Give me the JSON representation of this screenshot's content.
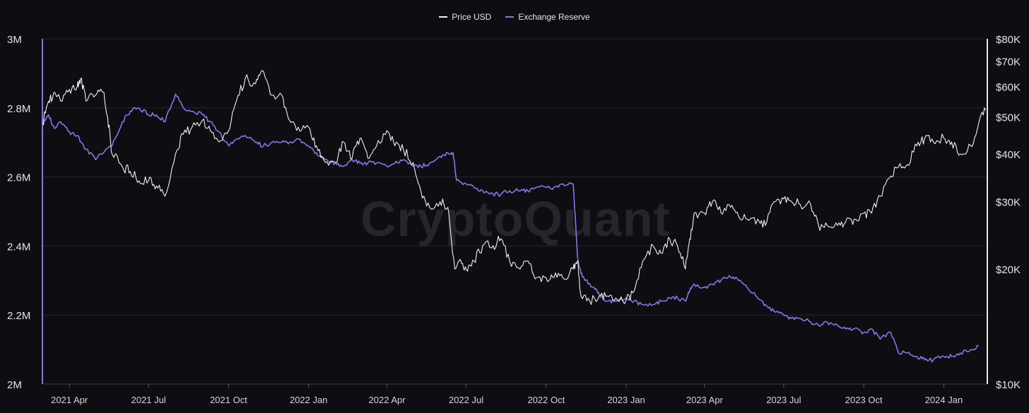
{
  "colors": {
    "background": "#0e0d11",
    "grid": "#25242b",
    "price": "#f2f2f2",
    "reserve": "#7b7bea"
  },
  "watermark": "CryptoQuant",
  "chart_data": {
    "type": "line",
    "title": "",
    "xlabel": "",
    "ylabel": "",
    "legend": [
      "Price USD",
      "Exchange Reserve"
    ],
    "legend_position": "top-center",
    "grid": true,
    "x_range": [
      "2021-03-01",
      "2024-02-20"
    ],
    "x_ticks": [
      "2021 Apr",
      "2021 Jul",
      "2021 Oct",
      "2022 Jan",
      "2022 Apr",
      "2022 Jul",
      "2022 Oct",
      "2023 Jan",
      "2023 Apr",
      "2023 Jul",
      "2023 Oct",
      "2024 Jan"
    ],
    "x_tick_dates": [
      "2021-04-01",
      "2021-07-01",
      "2021-10-01",
      "2022-01-01",
      "2022-04-01",
      "2022-07-01",
      "2022-10-01",
      "2023-01-01",
      "2023-04-01",
      "2023-07-01",
      "2023-10-01",
      "2024-01-01"
    ],
    "y_left": {
      "range": [
        2000000,
        3000000
      ],
      "ticks": [
        3000000,
        2800000,
        2600000,
        2400000,
        2200000,
        2000000
      ],
      "tick_labels": [
        "3M",
        "2.8M",
        "2.6M",
        "2.4M",
        "2.2M",
        "2M"
      ]
    },
    "y_right": {
      "scale": "log",
      "range": [
        10000,
        80000
      ],
      "ticks": [
        80000,
        70000,
        60000,
        50000,
        40000,
        30000,
        20000,
        10000
      ],
      "tick_labels": [
        "$80K",
        "$70K",
        "$60K",
        "$50K",
        "$40K",
        "$30K",
        "$20K",
        "$10K"
      ]
    },
    "series": [
      {
        "name": "Exchange Reserve",
        "axis": "left",
        "color": "#7b7bea",
        "x": [
          "2021-03-01",
          "2021-03-08",
          "2021-03-15",
          "2021-03-22",
          "2021-04-01",
          "2021-04-10",
          "2021-04-20",
          "2021-05-01",
          "2021-05-10",
          "2021-05-20",
          "2021-06-01",
          "2021-06-10",
          "2021-06-20",
          "2021-07-01",
          "2021-07-10",
          "2021-07-20",
          "2021-08-01",
          "2021-08-10",
          "2021-08-20",
          "2021-09-01",
          "2021-09-10",
          "2021-09-20",
          "2021-10-01",
          "2021-10-10",
          "2021-10-20",
          "2021-11-01",
          "2021-11-10",
          "2021-11-20",
          "2021-12-01",
          "2021-12-10",
          "2021-12-20",
          "2022-01-01",
          "2022-01-10",
          "2022-01-20",
          "2022-02-01",
          "2022-02-10",
          "2022-02-20",
          "2022-03-01",
          "2022-03-10",
          "2022-03-20",
          "2022-04-01",
          "2022-04-10",
          "2022-04-20",
          "2022-05-01",
          "2022-05-10",
          "2022-05-20",
          "2022-06-01",
          "2022-06-10",
          "2022-06-16",
          "2022-06-20",
          "2022-07-01",
          "2022-07-10",
          "2022-07-20",
          "2022-08-01",
          "2022-08-10",
          "2022-08-20",
          "2022-09-01",
          "2022-09-10",
          "2022-09-20",
          "2022-10-01",
          "2022-10-10",
          "2022-10-20",
          "2022-11-01",
          "2022-11-06",
          "2022-11-10",
          "2022-11-15",
          "2022-11-25",
          "2022-12-01",
          "2022-12-10",
          "2022-12-20",
          "2023-01-01",
          "2023-01-10",
          "2023-01-20",
          "2023-02-01",
          "2023-02-10",
          "2023-02-20",
          "2023-03-01",
          "2023-03-10",
          "2023-03-15",
          "2023-03-20",
          "2023-04-01",
          "2023-04-10",
          "2023-04-20",
          "2023-05-01",
          "2023-05-10",
          "2023-05-20",
          "2023-06-01",
          "2023-06-10",
          "2023-06-20",
          "2023-07-01",
          "2023-07-10",
          "2023-07-20",
          "2023-08-01",
          "2023-08-10",
          "2023-08-20",
          "2023-09-01",
          "2023-09-10",
          "2023-09-20",
          "2023-10-01",
          "2023-10-10",
          "2023-10-20",
          "2023-11-01",
          "2023-11-10",
          "2023-11-20",
          "2023-12-01",
          "2023-12-10",
          "2023-12-20",
          "2024-01-01",
          "2024-01-10",
          "2024-01-20",
          "2024-02-01",
          "2024-02-10"
        ],
        "values": [
          2750000,
          2780000,
          2740000,
          2760000,
          2730000,
          2720000,
          2680000,
          2650000,
          2670000,
          2690000,
          2760000,
          2790000,
          2800000,
          2780000,
          2780000,
          2760000,
          2840000,
          2800000,
          2790000,
          2780000,
          2760000,
          2730000,
          2690000,
          2710000,
          2720000,
          2700000,
          2690000,
          2700000,
          2700000,
          2700000,
          2710000,
          2690000,
          2670000,
          2650000,
          2640000,
          2630000,
          2650000,
          2640000,
          2640000,
          2640000,
          2630000,
          2640000,
          2650000,
          2630000,
          2630000,
          2640000,
          2660000,
          2670000,
          2670000,
          2590000,
          2580000,
          2570000,
          2560000,
          2550000,
          2550000,
          2560000,
          2560000,
          2560000,
          2570000,
          2570000,
          2570000,
          2580000,
          2580000,
          2370000,
          2320000,
          2300000,
          2280000,
          2260000,
          2240000,
          2240000,
          2250000,
          2240000,
          2230000,
          2230000,
          2240000,
          2250000,
          2250000,
          2240000,
          2270000,
          2290000,
          2280000,
          2290000,
          2300000,
          2310000,
          2300000,
          2280000,
          2250000,
          2230000,
          2210000,
          2200000,
          2190000,
          2190000,
          2180000,
          2170000,
          2180000,
          2170000,
          2160000,
          2160000,
          2150000,
          2160000,
          2130000,
          2150000,
          2090000,
          2090000,
          2080000,
          2070000,
          2070000,
          2080000,
          2080000,
          2090000,
          2100000,
          2110000
        ]
      },
      {
        "name": "Price USD",
        "axis": "right",
        "color": "#f2f2f2",
        "x": [
          "2021-03-01",
          "2021-03-08",
          "2021-03-15",
          "2021-03-22",
          "2021-04-01",
          "2021-04-10",
          "2021-04-14",
          "2021-04-20",
          "2021-05-01",
          "2021-05-10",
          "2021-05-15",
          "2021-05-20",
          "2021-06-01",
          "2021-06-10",
          "2021-06-20",
          "2021-07-01",
          "2021-07-10",
          "2021-07-20",
          "2021-08-01",
          "2021-08-10",
          "2021-08-20",
          "2021-09-01",
          "2021-09-10",
          "2021-09-20",
          "2021-10-01",
          "2021-10-10",
          "2021-10-20",
          "2021-11-01",
          "2021-11-08",
          "2021-11-20",
          "2021-12-01",
          "2021-12-10",
          "2021-12-20",
          "2022-01-01",
          "2022-01-10",
          "2022-01-20",
          "2022-02-01",
          "2022-02-10",
          "2022-02-20",
          "2022-03-01",
          "2022-03-10",
          "2022-03-20",
          "2022-04-01",
          "2022-04-10",
          "2022-04-20",
          "2022-05-01",
          "2022-05-10",
          "2022-05-20",
          "2022-06-01",
          "2022-06-10",
          "2022-06-18",
          "2022-06-25",
          "2022-07-01",
          "2022-07-10",
          "2022-07-20",
          "2022-08-01",
          "2022-08-10",
          "2022-08-20",
          "2022-09-01",
          "2022-09-10",
          "2022-09-20",
          "2022-10-01",
          "2022-10-10",
          "2022-10-20",
          "2022-11-01",
          "2022-11-06",
          "2022-11-10",
          "2022-11-20",
          "2022-12-01",
          "2022-12-10",
          "2022-12-20",
          "2023-01-01",
          "2023-01-10",
          "2023-01-20",
          "2023-02-01",
          "2023-02-10",
          "2023-02-20",
          "2023-03-01",
          "2023-03-10",
          "2023-03-15",
          "2023-03-20",
          "2023-04-01",
          "2023-04-10",
          "2023-04-20",
          "2023-05-01",
          "2023-05-10",
          "2023-05-20",
          "2023-06-01",
          "2023-06-10",
          "2023-06-20",
          "2023-07-01",
          "2023-07-10",
          "2023-07-20",
          "2023-08-01",
          "2023-08-10",
          "2023-08-20",
          "2023-09-01",
          "2023-09-10",
          "2023-09-20",
          "2023-10-01",
          "2023-10-10",
          "2023-10-20",
          "2023-11-01",
          "2023-11-10",
          "2023-11-20",
          "2023-12-01",
          "2023-12-10",
          "2023-12-20",
          "2024-01-01",
          "2024-01-10",
          "2024-01-20",
          "2024-02-01",
          "2024-02-10",
          "2024-02-18"
        ],
        "values": [
          48000,
          55000,
          58000,
          55000,
          59000,
          60000,
          63000,
          55000,
          57000,
          58000,
          50000,
          40000,
          37000,
          36000,
          34000,
          34000,
          33000,
          31000,
          40000,
          45000,
          47000,
          49000,
          46000,
          43000,
          46000,
          55000,
          63000,
          61000,
          66000,
          57000,
          57000,
          49000,
          47000,
          47000,
          42000,
          38000,
          38000,
          43000,
          39000,
          44000,
          39000,
          42000,
          46000,
          42000,
          41000,
          38000,
          32000,
          29000,
          30000,
          29000,
          20000,
          21000,
          20000,
          21000,
          23000,
          23000,
          24000,
          21000,
          20000,
          21000,
          19000,
          19000,
          19000,
          19000,
          20000,
          21000,
          17000,
          16500,
          17000,
          17000,
          16800,
          16600,
          17500,
          21000,
          23000,
          22000,
          24000,
          23000,
          20000,
          24000,
          28000,
          28000,
          30000,
          28000,
          29000,
          27500,
          27000,
          27000,
          26000,
          30000,
          30500,
          30000,
          29500,
          29500,
          26000,
          26000,
          26000,
          26500,
          27000,
          28000,
          28000,
          31000,
          35000,
          37000,
          37500,
          42000,
          44000,
          43000,
          44000,
          43000,
          40000,
          42000,
          48000,
          52000
        ]
      }
    ]
  }
}
